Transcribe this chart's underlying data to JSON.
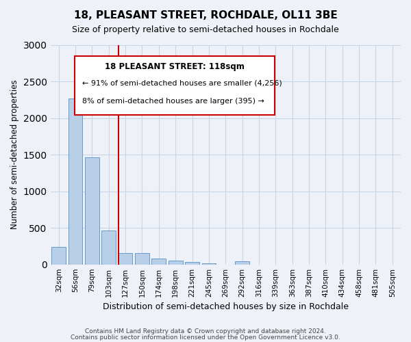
{
  "title": "18, PLEASANT STREET, ROCHDALE, OL11 3BE",
  "subtitle": "Size of property relative to semi-detached houses in Rochdale",
  "xlabel": "Distribution of semi-detached houses by size in Rochdale",
  "ylabel": "Number of semi-detached properties",
  "categories": [
    "32sqm",
    "56sqm",
    "79sqm",
    "103sqm",
    "127sqm",
    "150sqm",
    "174sqm",
    "198sqm",
    "221sqm",
    "245sqm",
    "269sqm",
    "292sqm",
    "316sqm",
    "339sqm",
    "363sqm",
    "387sqm",
    "410sqm",
    "434sqm",
    "458sqm",
    "481sqm",
    "505sqm"
  ],
  "values": [
    240,
    2270,
    1460,
    460,
    160,
    155,
    85,
    50,
    30,
    20,
    0,
    40,
    0,
    0,
    0,
    0,
    0,
    0,
    0,
    0,
    0
  ],
  "bar_color": "#b8cfe8",
  "bar_edge_color": "#6699cc",
  "vline_x": 3.575,
  "annotation_title": "18 PLEASANT STREET: 118sqm",
  "annotation_line1": "← 91% of semi-detached houses are smaller (4,256)",
  "annotation_line2": "8% of semi-detached houses are larger (395) →",
  "box_color": "#cc0000",
  "ylim": [
    0,
    3000
  ],
  "yticks": [
    0,
    500,
    1000,
    1500,
    2000,
    2500,
    3000
  ],
  "footer1": "Contains HM Land Registry data © Crown copyright and database right 2024.",
  "footer2": "Contains public sector information licensed under the Open Government Licence v3.0.",
  "background_color": "#eef2f8",
  "grid_color": "#c8d4e8"
}
